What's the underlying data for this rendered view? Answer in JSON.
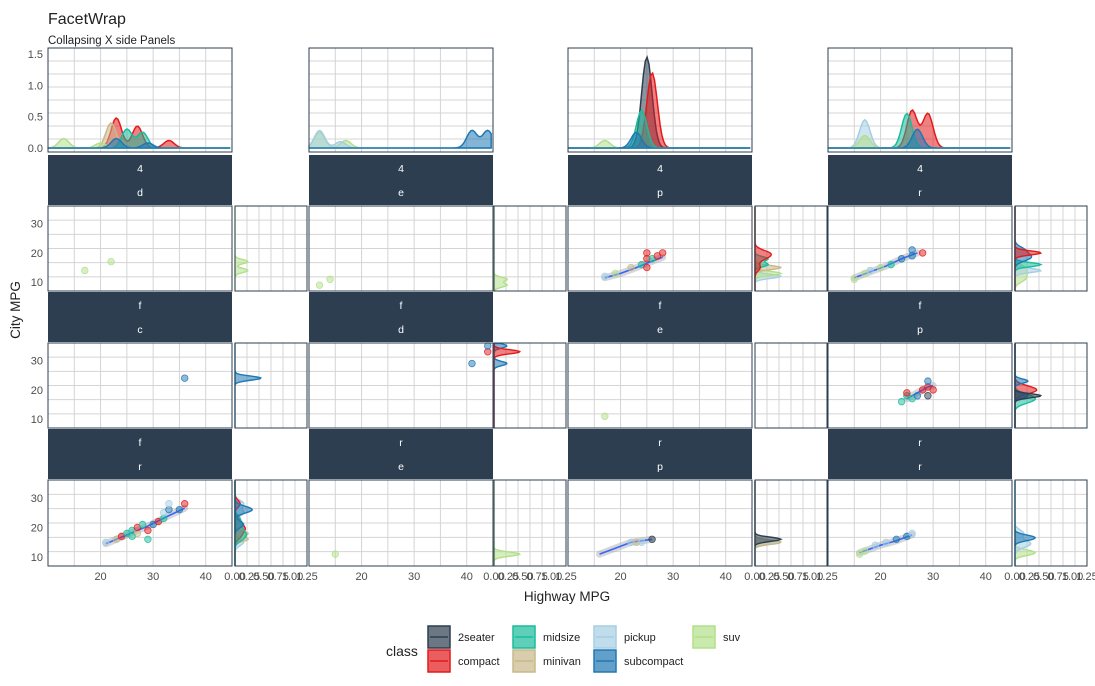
{
  "title": "FacetWrap",
  "subtitle": "Collapsing X side Panels",
  "x_axis_label": "Highway MPG",
  "y_axis_label": "City MPG",
  "colors": {
    "strip": "#2c3e50",
    "grid": "#d4d4d4",
    "panel_border": "#2c3e50",
    "smooth": "#3366ff"
  },
  "legend": {
    "title": "class",
    "items": [
      {
        "label": "2seater",
        "color": "#2c3e50"
      },
      {
        "label": "compact",
        "color": "#e31a1c"
      },
      {
        "label": "midsize",
        "color": "#1abc9c"
      },
      {
        "label": "minivan",
        "color": "#c8b88a"
      },
      {
        "label": "pickup",
        "color": "#a6cee3"
      },
      {
        "label": "subcompact",
        "color": "#1f78b4"
      },
      {
        "label": "suv",
        "color": "#b2df8a"
      }
    ]
  },
  "chart_data": {
    "type": "scatter",
    "description_axes": {
      "x_ticks": [
        "20",
        "30",
        "40"
      ],
      "y_ticks": [
        "10",
        "20",
        "30"
      ],
      "xlim": [
        10,
        45
      ],
      "ylim": [
        7,
        36
      ],
      "top_density_ticks": [
        "0.0",
        "0.5",
        "1.0",
        "1.5"
      ],
      "top_density_ylim": [
        0,
        1.5
      ],
      "side_density_ticks": [
        "0.00",
        "0.25",
        "0.50",
        "0.75",
        "1.00",
        "1.25"
      ],
      "side_density_xlim": [
        0,
        1.25
      ]
    },
    "facet_columns": [
      {
        "strip_top": "4",
        "strip_bottom": "d"
      },
      {
        "strip_top": "4",
        "strip_bottom": "e"
      },
      {
        "strip_top": "4",
        "strip_bottom": "p"
      },
      {
        "strip_top": "4",
        "strip_bottom": "r"
      }
    ],
    "facet_rows": [
      [
        {
          "strip_top": "4",
          "strip_bottom": "d",
          "points": [
            {
              "x": 17,
              "y": 14,
              "class": "suv"
            },
            {
              "x": 22,
              "y": 17,
              "class": "suv"
            }
          ],
          "smooth": false
        },
        {
          "strip_top": "4",
          "strip_bottom": "e",
          "points": [
            {
              "x": 12,
              "y": 9,
              "class": "suv"
            },
            {
              "x": 14,
              "y": 11,
              "class": "suv"
            }
          ],
          "smooth": false
        },
        {
          "strip_top": "4",
          "strip_bottom": "p",
          "points": [
            {
              "x": 17,
              "y": 12,
              "class": "pickup"
            },
            {
              "x": 19,
              "y": 13,
              "class": "suv"
            },
            {
              "x": 22,
              "y": 15,
              "class": "minivan"
            },
            {
              "x": 24,
              "y": 16,
              "class": "midsize"
            },
            {
              "x": 25,
              "y": 15,
              "class": "compact"
            },
            {
              "x": 25,
              "y": 18,
              "class": "compact"
            },
            {
              "x": 25,
              "y": 20,
              "class": "compact"
            },
            {
              "x": 26,
              "y": 18,
              "class": "midsize"
            },
            {
              "x": 27,
              "y": 19,
              "class": "compact"
            },
            {
              "x": 28,
              "y": 20,
              "class": "compact"
            }
          ],
          "smooth": [
            [
              17,
              11.5
            ],
            [
              20,
              13
            ],
            [
              23,
              15
            ],
            [
              25,
              16.5
            ],
            [
              28,
              18.5
            ]
          ]
        },
        {
          "strip_top": "4",
          "strip_bottom": "r",
          "points": [
            {
              "x": 15,
              "y": 11,
              "class": "suv"
            },
            {
              "x": 17,
              "y": 13,
              "class": "suv"
            },
            {
              "x": 18,
              "y": 14,
              "class": "pickup"
            },
            {
              "x": 20,
              "y": 15,
              "class": "suv"
            },
            {
              "x": 22,
              "y": 16,
              "class": "midsize"
            },
            {
              "x": 24,
              "y": 18,
              "class": "subcompact"
            },
            {
              "x": 26,
              "y": 19,
              "class": "subcompact"
            },
            {
              "x": 26,
              "y": 21,
              "class": "subcompact"
            },
            {
              "x": 28,
              "y": 20,
              "class": "compact"
            }
          ],
          "smooth": [
            [
              15,
              11.5
            ],
            [
              18,
              13.5
            ],
            [
              21,
              15.5
            ],
            [
              24,
              18
            ],
            [
              27,
              20
            ]
          ]
        }
      ],
      [
        {
          "strip_top": "f",
          "strip_bottom": "c",
          "points": [
            {
              "x": 36,
              "y": 24,
              "class": "subcompact"
            }
          ],
          "smooth": false
        },
        {
          "strip_top": "f",
          "strip_bottom": "d",
          "points": [
            {
              "x": 41,
              "y": 29,
              "class": "subcompact"
            },
            {
              "x": 44,
              "y": 33,
              "class": "compact"
            },
            {
              "x": 44,
              "y": 35,
              "class": "subcompact"
            }
          ],
          "smooth": false
        },
        {
          "strip_top": "f",
          "strip_bottom": "e",
          "points": [
            {
              "x": 17,
              "y": 11,
              "class": "suv"
            }
          ],
          "smooth": false
        },
        {
          "strip_top": "f",
          "strip_bottom": "p",
          "points": [
            {
              "x": 24,
              "y": 16,
              "class": "midsize"
            },
            {
              "x": 25,
              "y": 18,
              "class": "midsize"
            },
            {
              "x": 25,
              "y": 19,
              "class": "compact"
            },
            {
              "x": 26,
              "y": 17,
              "class": "midsize"
            },
            {
              "x": 27,
              "y": 18,
              "class": "subcompact"
            },
            {
              "x": 28,
              "y": 20,
              "class": "compact"
            },
            {
              "x": 29,
              "y": 21,
              "class": "compact"
            },
            {
              "x": 29,
              "y": 23,
              "class": "subcompact"
            },
            {
              "x": 30,
              "y": 20,
              "class": "compact"
            },
            {
              "x": 29,
              "y": 18,
              "class": "2seater"
            }
          ],
          "smooth": [
            [
              25,
              17
            ],
            [
              27,
              19
            ],
            [
              29,
              21
            ],
            [
              30,
              21.5
            ]
          ]
        }
      ],
      [
        {
          "strip_top": "f",
          "strip_bottom": "r",
          "points": [
            {
              "x": 21,
              "y": 15,
              "class": "pickup"
            },
            {
              "x": 23,
              "y": 16,
              "class": "minivan"
            },
            {
              "x": 24,
              "y": 17,
              "class": "compact"
            },
            {
              "x": 25,
              "y": 18,
              "class": "midsize"
            },
            {
              "x": 26,
              "y": 19,
              "class": "midsize"
            },
            {
              "x": 27,
              "y": 18,
              "class": "minivan"
            },
            {
              "x": 27,
              "y": 20,
              "class": "compact"
            },
            {
              "x": 28,
              "y": 21,
              "class": "midsize"
            },
            {
              "x": 29,
              "y": 19,
              "class": "compact"
            },
            {
              "x": 30,
              "y": 21,
              "class": "subcompact"
            },
            {
              "x": 31,
              "y": 22,
              "class": "compact"
            },
            {
              "x": 32,
              "y": 23,
              "class": "midsize"
            },
            {
              "x": 32,
              "y": 25,
              "class": "pickup"
            },
            {
              "x": 33,
              "y": 26,
              "class": "subcompact"
            },
            {
              "x": 35,
              "y": 26,
              "class": "subcompact"
            },
            {
              "x": 36,
              "y": 28,
              "class": "compact"
            },
            {
              "x": 33,
              "y": 28,
              "class": "pickup"
            },
            {
              "x": 29,
              "y": 16,
              "class": "midsize"
            },
            {
              "x": 26,
              "y": 17,
              "class": "midsize"
            }
          ],
          "smooth": [
            [
              21,
              14.5
            ],
            [
              25,
              17.5
            ],
            [
              29,
              20.5
            ],
            [
              33,
              24
            ],
            [
              36,
              26.5
            ]
          ]
        },
        {
          "strip_top": "r",
          "strip_bottom": "e",
          "points": [
            {
              "x": 15,
              "y": 11,
              "class": "suv"
            }
          ],
          "smooth": false
        },
        {
          "strip_top": "r",
          "strip_bottom": "p",
          "points": [
            {
              "x": 22,
              "y": 15,
              "class": "pickup"
            },
            {
              "x": 23,
              "y": 15,
              "class": "minivan"
            },
            {
              "x": 24,
              "y": 15,
              "class": "pickup"
            },
            {
              "x": 26,
              "y": 16,
              "class": "2seater"
            }
          ],
          "smooth": [
            [
              16,
              11
            ],
            [
              19,
              13
            ],
            [
              22,
              15
            ],
            [
              26,
              16
            ]
          ]
        },
        {
          "strip_top": "r",
          "strip_bottom": "r",
          "points": [
            {
              "x": 16,
              "y": 11,
              "class": "suv"
            },
            {
              "x": 17,
              "y": 12,
              "class": "suv"
            },
            {
              "x": 19,
              "y": 14,
              "class": "pickup"
            },
            {
              "x": 21,
              "y": 15,
              "class": "pickup"
            },
            {
              "x": 23,
              "y": 16,
              "class": "subcompact"
            },
            {
              "x": 25,
              "y": 17,
              "class": "subcompact"
            },
            {
              "x": 26,
              "y": 18,
              "class": "pickup"
            }
          ],
          "smooth": [
            [
              16,
              11.5
            ],
            [
              20,
              14
            ],
            [
              23,
              15.5
            ],
            [
              26,
              17.5
            ]
          ]
        }
      ]
    ],
    "top_density": [
      {
        "series": [
          {
            "class": "compact",
            "peaks": [
              [
                23,
                0.48
              ],
              [
                27,
                0.35
              ],
              [
                33,
                0.12
              ]
            ]
          },
          {
            "class": "minivan",
            "peaks": [
              [
                22,
                0.4
              ]
            ]
          },
          {
            "class": "midsize",
            "peaks": [
              [
                25,
                0.3
              ],
              [
                28,
                0.25
              ]
            ]
          },
          {
            "class": "suv",
            "peaks": [
              [
                13,
                0.15
              ],
              [
                20,
                0.08
              ]
            ]
          },
          {
            "class": "subcompact",
            "peaks": [
              [
                23,
                0.15
              ],
              [
                29,
                0.08
              ]
            ]
          }
        ]
      },
      {
        "series": [
          {
            "class": "suv",
            "peaks": [
              [
                12,
                0.25
              ],
              [
                17,
                0.12
              ]
            ]
          },
          {
            "class": "pickup",
            "peaks": [
              [
                12,
                0.28
              ],
              [
                16,
                0.1
              ]
            ]
          },
          {
            "class": "subcompact",
            "peaks": [
              [
                41,
                0.28
              ],
              [
                44,
                0.28
              ]
            ]
          }
        ]
      },
      {
        "series": [
          {
            "class": "2seater",
            "peaks": [
              [
                25,
                1.45
              ]
            ]
          },
          {
            "class": "compact",
            "peaks": [
              [
                26,
                1.2
              ]
            ]
          },
          {
            "class": "midsize",
            "peaks": [
              [
                24,
                0.6
              ]
            ]
          },
          {
            "class": "suv",
            "peaks": [
              [
                17,
                0.12
              ]
            ]
          },
          {
            "class": "subcompact",
            "peaks": [
              [
                23,
                0.25
              ]
            ]
          }
        ]
      },
      {
        "series": [
          {
            "class": "pickup",
            "peaks": [
              [
                17,
                0.45
              ]
            ]
          },
          {
            "class": "compact",
            "peaks": [
              [
                26,
                0.6
              ],
              [
                29,
                0.55
              ]
            ]
          },
          {
            "class": "midsize",
            "peaks": [
              [
                25,
                0.55
              ]
            ]
          },
          {
            "class": "suv",
            "peaks": [
              [
                17,
                0.2
              ]
            ]
          },
          {
            "class": "subcompact",
            "peaks": [
              [
                27,
                0.3
              ]
            ]
          }
        ]
      }
    ]
  }
}
